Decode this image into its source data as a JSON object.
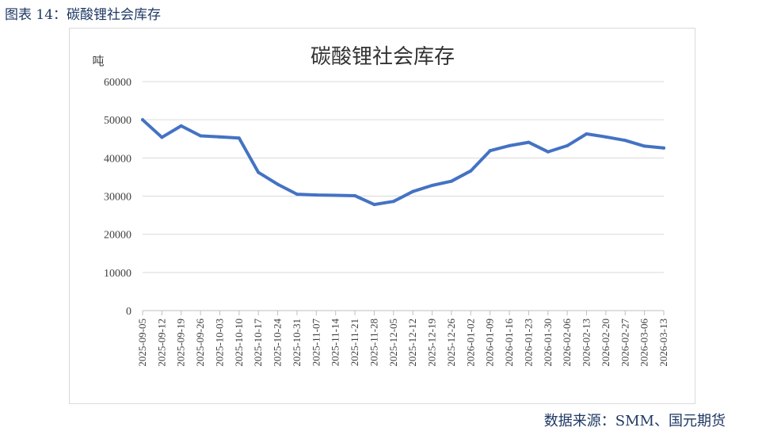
{
  "caption": "图表 14：碳酸锂社会库存",
  "source": "数据来源：SMM、国元期货",
  "chart_data": {
    "type": "line",
    "title": "碳酸锂社会库存",
    "ylabel": "吨",
    "xlabel": "",
    "ylim": [
      0,
      60000
    ],
    "yticks": [
      0,
      10000,
      20000,
      30000,
      40000,
      50000,
      60000
    ],
    "grid": true,
    "line_color": "#4472c4",
    "categories": [
      "2025-09-05",
      "2025-09-12",
      "2025-09-19",
      "2025-09-26",
      "2025-10-03",
      "2025-10-10",
      "2025-10-17",
      "2025-10-24",
      "2025-10-31",
      "2025-11-07",
      "2025-11-14",
      "2025-11-21",
      "2025-11-28",
      "2025-12-05",
      "2025-12-12",
      "2025-12-19",
      "2025-12-26",
      "2026-01-02",
      "2026-01-09",
      "2026-01-16",
      "2026-01-23",
      "2026-01-30",
      "2026-02-06",
      "2026-02-13",
      "2026-02-20",
      "2026-02-27",
      "2026-03-06",
      "2026-03-13"
    ],
    "series": [
      {
        "values": [
          50000,
          45400,
          48400,
          45800,
          45500,
          45200,
          36200,
          33100,
          30500,
          30300,
          30200,
          30100,
          27800,
          28600,
          31200,
          32800,
          33900,
          36600,
          41900,
          43200,
          44100,
          41600,
          43200,
          46300,
          45500,
          44600,
          43100,
          42600
        ]
      }
    ]
  }
}
